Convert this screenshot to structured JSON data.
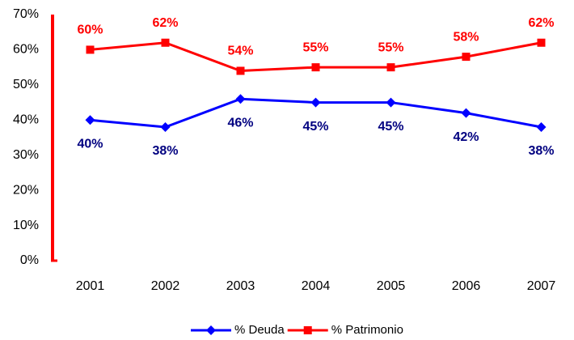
{
  "chart_data": {
    "type": "line",
    "categories": [
      "2001",
      "2002",
      "2003",
      "2004",
      "2005",
      "2006",
      "2007"
    ],
    "series": [
      {
        "name": "% Deuda",
        "color": "#0000ff",
        "marker": "diamond",
        "label_color": "#000080",
        "label_position": "below",
        "values": [
          40,
          38,
          46,
          45,
          45,
          42,
          38
        ],
        "value_labels": [
          "40%",
          "38%",
          "46%",
          "45%",
          "45%",
          "42%",
          "38%"
        ]
      },
      {
        "name": "% Patrimonio",
        "color": "#ff0000",
        "marker": "square",
        "label_color": "#ff0000",
        "label_position": "above",
        "values": [
          60,
          62,
          54,
          55,
          55,
          58,
          62
        ],
        "value_labels": [
          "60%",
          "62%",
          "54%",
          "55%",
          "55%",
          "58%",
          "62%"
        ]
      }
    ],
    "ylim": [
      0,
      70
    ],
    "yticks": [
      {
        "value": 0,
        "label": "0%"
      },
      {
        "value": 10,
        "label": "10%"
      },
      {
        "value": 20,
        "label": "20%"
      },
      {
        "value": 30,
        "label": "30%"
      },
      {
        "value": 40,
        "label": "40%"
      },
      {
        "value": 50,
        "label": "50%"
      },
      {
        "value": 60,
        "label": "60%"
      },
      {
        "value": 70,
        "label": "70%"
      }
    ],
    "axis_color": "#ff0000",
    "grid": false,
    "legend": "bottom"
  }
}
